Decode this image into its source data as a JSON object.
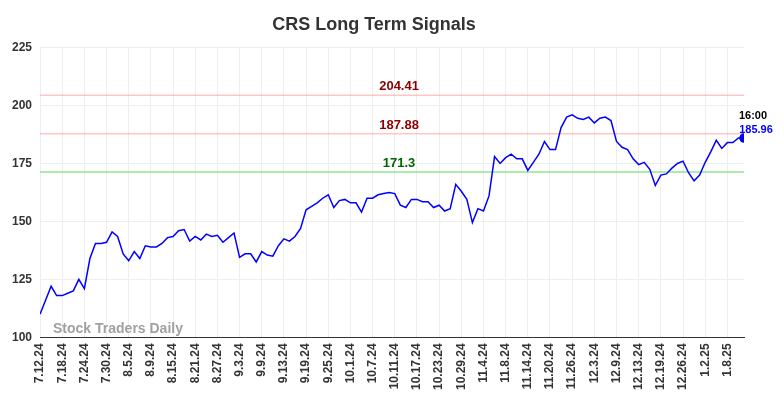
{
  "chart_data": {
    "type": "line",
    "title": "CRS Long Term Signals",
    "categories": [
      "7.12.24",
      null,
      null,
      null,
      "7.18.24",
      null,
      null,
      null,
      "7.24.24",
      null,
      null,
      null,
      "7.30.24",
      null,
      null,
      null,
      "8.5.24",
      null,
      null,
      null,
      "8.9.24",
      null,
      null,
      null,
      "8.15.24",
      null,
      null,
      null,
      "8.21.24",
      null,
      null,
      null,
      "8.27.24",
      null,
      null,
      null,
      "9.3.24",
      null,
      null,
      null,
      "9.9.24",
      null,
      null,
      null,
      "9.13.24",
      null,
      null,
      null,
      "9.19.24",
      null,
      null,
      null,
      "9.25.24",
      null,
      null,
      null,
      "10.1.24",
      null,
      null,
      null,
      "10.7.24",
      null,
      null,
      null,
      "10.11.24",
      null,
      null,
      null,
      "10.17.24",
      null,
      null,
      null,
      "10.23.24",
      null,
      null,
      null,
      "10.29.24",
      null,
      null,
      null,
      "11.4.24",
      null,
      null,
      null,
      "11.8.24",
      null,
      null,
      null,
      "11.14.24",
      null,
      null,
      null,
      "11.20.24",
      null,
      null,
      null,
      "11.26.24",
      null,
      null,
      null,
      "12.3.24",
      null,
      null,
      null,
      "12.9.24",
      null,
      null,
      null,
      "12.13.24",
      null,
      null,
      null,
      "12.19.24",
      null,
      null,
      null,
      "12.26.24",
      null,
      null,
      null,
      "1.2.25",
      null,
      null,
      null,
      "1.8.25",
      null,
      null,
      null
    ],
    "values": [
      110,
      116,
      122,
      118,
      118,
      119,
      120,
      125,
      121,
      134,
      140.5,
      140.5,
      141,
      145.5,
      143.5,
      136,
      133,
      137,
      134,
      139.5,
      139,
      139,
      140.5,
      143,
      143.5,
      146,
      146.5,
      141.5,
      143.5,
      142,
      144.5,
      143.5,
      144,
      141,
      143,
      145,
      134.5,
      136,
      136,
      132.5,
      137,
      135.5,
      135,
      139.5,
      142.5,
      141.5,
      143.5,
      147,
      155,
      156.5,
      158,
      160,
      161.5,
      156,
      159,
      159.5,
      158,
      158,
      154,
      160,
      160,
      161.5,
      162,
      162.5,
      162,
      157,
      156,
      159.5,
      159.5,
      158.5,
      158.5,
      156,
      157,
      154.5,
      155.5,
      166,
      163,
      159.5,
      149.5,
      155.5,
      154.5,
      161,
      178,
      175,
      177.5,
      179,
      177,
      177,
      172,
      175.5,
      179,
      184.5,
      181,
      181,
      190.5,
      195,
      196,
      194.5,
      194,
      195,
      192.5,
      194.5,
      195,
      193.5,
      184.5,
      182,
      181,
      177,
      174.5,
      175.5,
      172.5,
      165.5,
      170,
      170.5,
      173,
      175,
      176,
      171,
      167.5,
      170,
      175.5,
      180,
      185,
      181.5,
      184,
      184,
      186,
      185.96
    ],
    "color": "#0000ff",
    "ylim": [
      100,
      225
    ],
    "yticks": [
      100,
      125,
      150,
      175,
      200,
      225
    ],
    "grid": true,
    "signal_lines": [
      {
        "value": 204.41,
        "color": "#8b0000"
      },
      {
        "value": 187.88,
        "color": "#8b0000"
      },
      {
        "value": 171.3,
        "color": "#006400"
      }
    ],
    "last_point": {
      "time": "16:00",
      "value": 185.96
    },
    "watermark": "Stock Traders Daily"
  }
}
